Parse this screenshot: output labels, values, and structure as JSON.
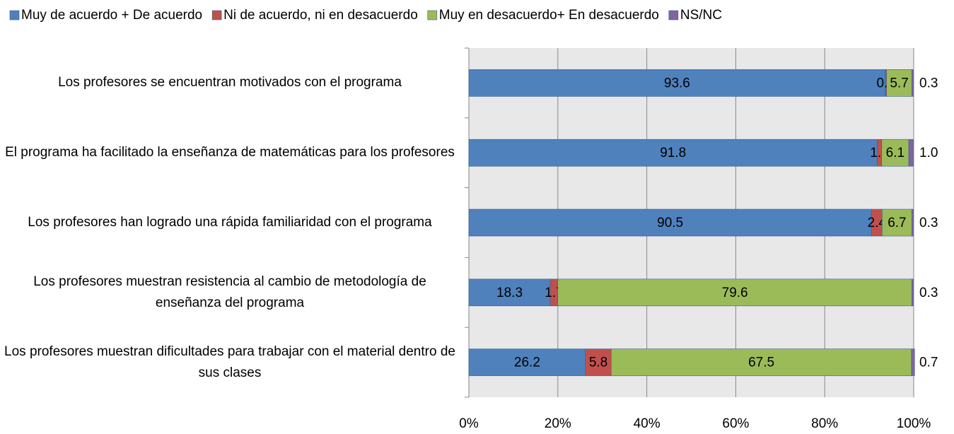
{
  "chart_data": {
    "type": "stacked-bar-100-horizontal",
    "categories": [
      "Los profesores se encuentran motivados con el programa",
      "El programa ha facilitado la enseñanza de matemáticas para los profesores",
      "Los profesores han logrado una rápida familiaridad con el programa",
      "Los profesores muestran resistencia al cambio de metodología de enseñanza del programa",
      "Los profesores muestran dificultades para trabajar con el material dentro de sus clases"
    ],
    "series": [
      {
        "name": "Muy de acuerdo + De acuerdo",
        "color": "#4f81bd",
        "values": [
          93.6,
          91.8,
          90.5,
          18.3,
          26.2
        ],
        "value_labels": [
          "93.6",
          "91.8",
          "90.5",
          "18.3",
          "26.2"
        ]
      },
      {
        "name": "Ni de acuerdo, ni en desacuerdo",
        "color": "#c0504d",
        "values": [
          0.3,
          1.0,
          2.4,
          1.7,
          5.8
        ],
        "value_labels": [
          "0.3",
          "1.0",
          "2.4",
          "1.7",
          "5.8"
        ]
      },
      {
        "name": "Muy en desacuerdo+ En desacuerdo",
        "color": "#9bbb59",
        "values": [
          5.7,
          6.1,
          6.7,
          79.6,
          67.5
        ],
        "value_labels": [
          "5.7",
          "6.1",
          "6.7",
          "79.6",
          "67.5"
        ]
      },
      {
        "name": "NS/NC",
        "color": "#8064a2",
        "values": [
          0.3,
          1.0,
          0.3,
          0.3,
          0.7
        ],
        "value_labels": [
          "0.3",
          "1.0",
          "0.3",
          "0.3",
          "0.7"
        ]
      }
    ],
    "xlim": [
      0,
      100
    ],
    "xticks": [
      {
        "value": 0,
        "label": "0%"
      },
      {
        "value": 20,
        "label": "20%"
      },
      {
        "value": 40,
        "label": "40%"
      },
      {
        "value": 60,
        "label": "60%"
      },
      {
        "value": 80,
        "label": "80%"
      },
      {
        "value": 100,
        "label": "100%"
      }
    ],
    "grid": true,
    "legend": "top"
  }
}
